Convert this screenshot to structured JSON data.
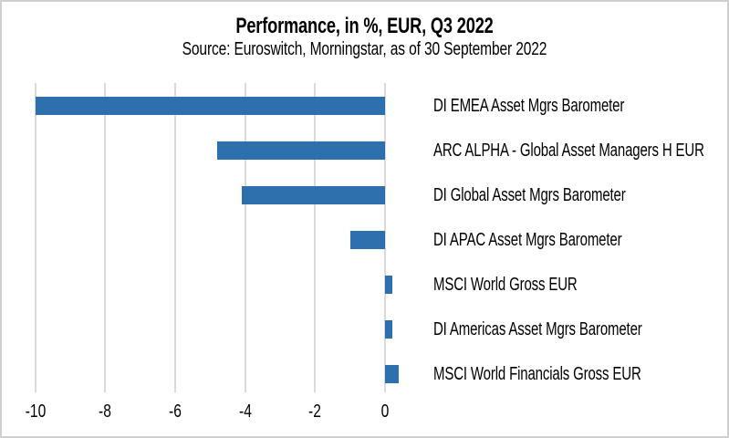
{
  "colors": {
    "bar": "#2E70AD",
    "gridline": "#D9D9D9",
    "border": "#CFCFCF",
    "text": "#000000",
    "background": "#FFFFFF"
  },
  "chart_data": {
    "type": "bar",
    "orientation": "horizontal",
    "title": "Performance, in %, EUR, Q3 2022",
    "subtitle": "Source: Euroswitch, Morningstar, as of 30 September 2022",
    "value_unit": "%",
    "categories": [
      "DI EMEA Asset Mgrs Barometer",
      "ARC ALPHA - Global Asset Managers H EUR",
      "DI Global Asset Mgrs Barometer",
      "DI APAC Asset Mgrs Barometer",
      "MSCI World Gross EUR",
      "DI Americas Asset Mgrs Barometer",
      "MSCI World Financials Gross EUR"
    ],
    "values": [
      -10.0,
      -4.8,
      -4.1,
      -1.0,
      0.2,
      0.2,
      0.4
    ],
    "x_ticks": [
      -10,
      -8,
      -6,
      -4,
      -2,
      0
    ],
    "xlim": [
      -10.1,
      0.6
    ],
    "grid": "vertical-only",
    "legend": "none",
    "category_labels_position": "right-of-plot"
  }
}
